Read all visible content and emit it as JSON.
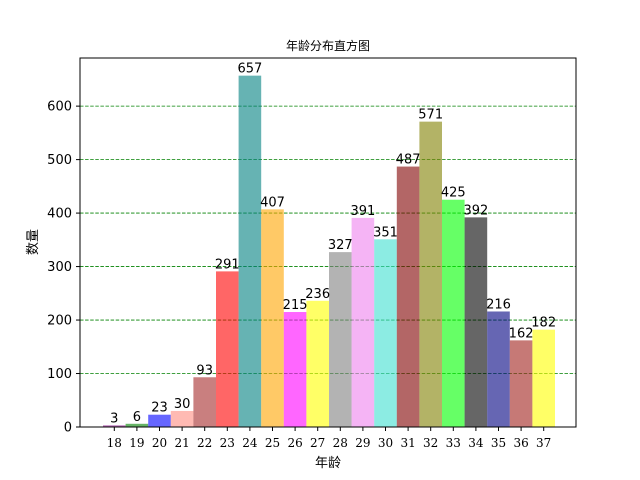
{
  "chart_data": {
    "type": "bar",
    "title": "年龄分布直方图",
    "xlabel": "年龄",
    "ylabel": "数量",
    "categories": [
      "18",
      "19",
      "20",
      "21",
      "22",
      "23",
      "24",
      "25",
      "26",
      "27",
      "28",
      "29",
      "30",
      "31",
      "32",
      "33",
      "34",
      "35",
      "36",
      "37"
    ],
    "values": [
      3,
      6,
      23,
      30,
      93,
      291,
      657,
      407,
      215,
      236,
      327,
      391,
      351,
      487,
      571,
      425,
      392,
      216,
      162,
      182
    ],
    "colors": [
      "#800080",
      "#008000",
      "#0000ff",
      "#ff8c80",
      "#a52a2a",
      "#ff0000",
      "#008080",
      "#ffa500",
      "#ff00ff",
      "#ffff00",
      "#808080",
      "#ee82ee",
      "#40e0d0",
      "#800000",
      "#808000",
      "#00ff00",
      "#000000",
      "#000080",
      "#a0201a",
      "#ffff00"
    ],
    "bar_alpha": 0.6,
    "yticks": [
      0,
      100,
      200,
      300,
      400,
      500,
      600
    ],
    "ylim": [
      0,
      690
    ],
    "grid": {
      "axis": "y",
      "style": "dashed",
      "color": "#008000"
    }
  }
}
